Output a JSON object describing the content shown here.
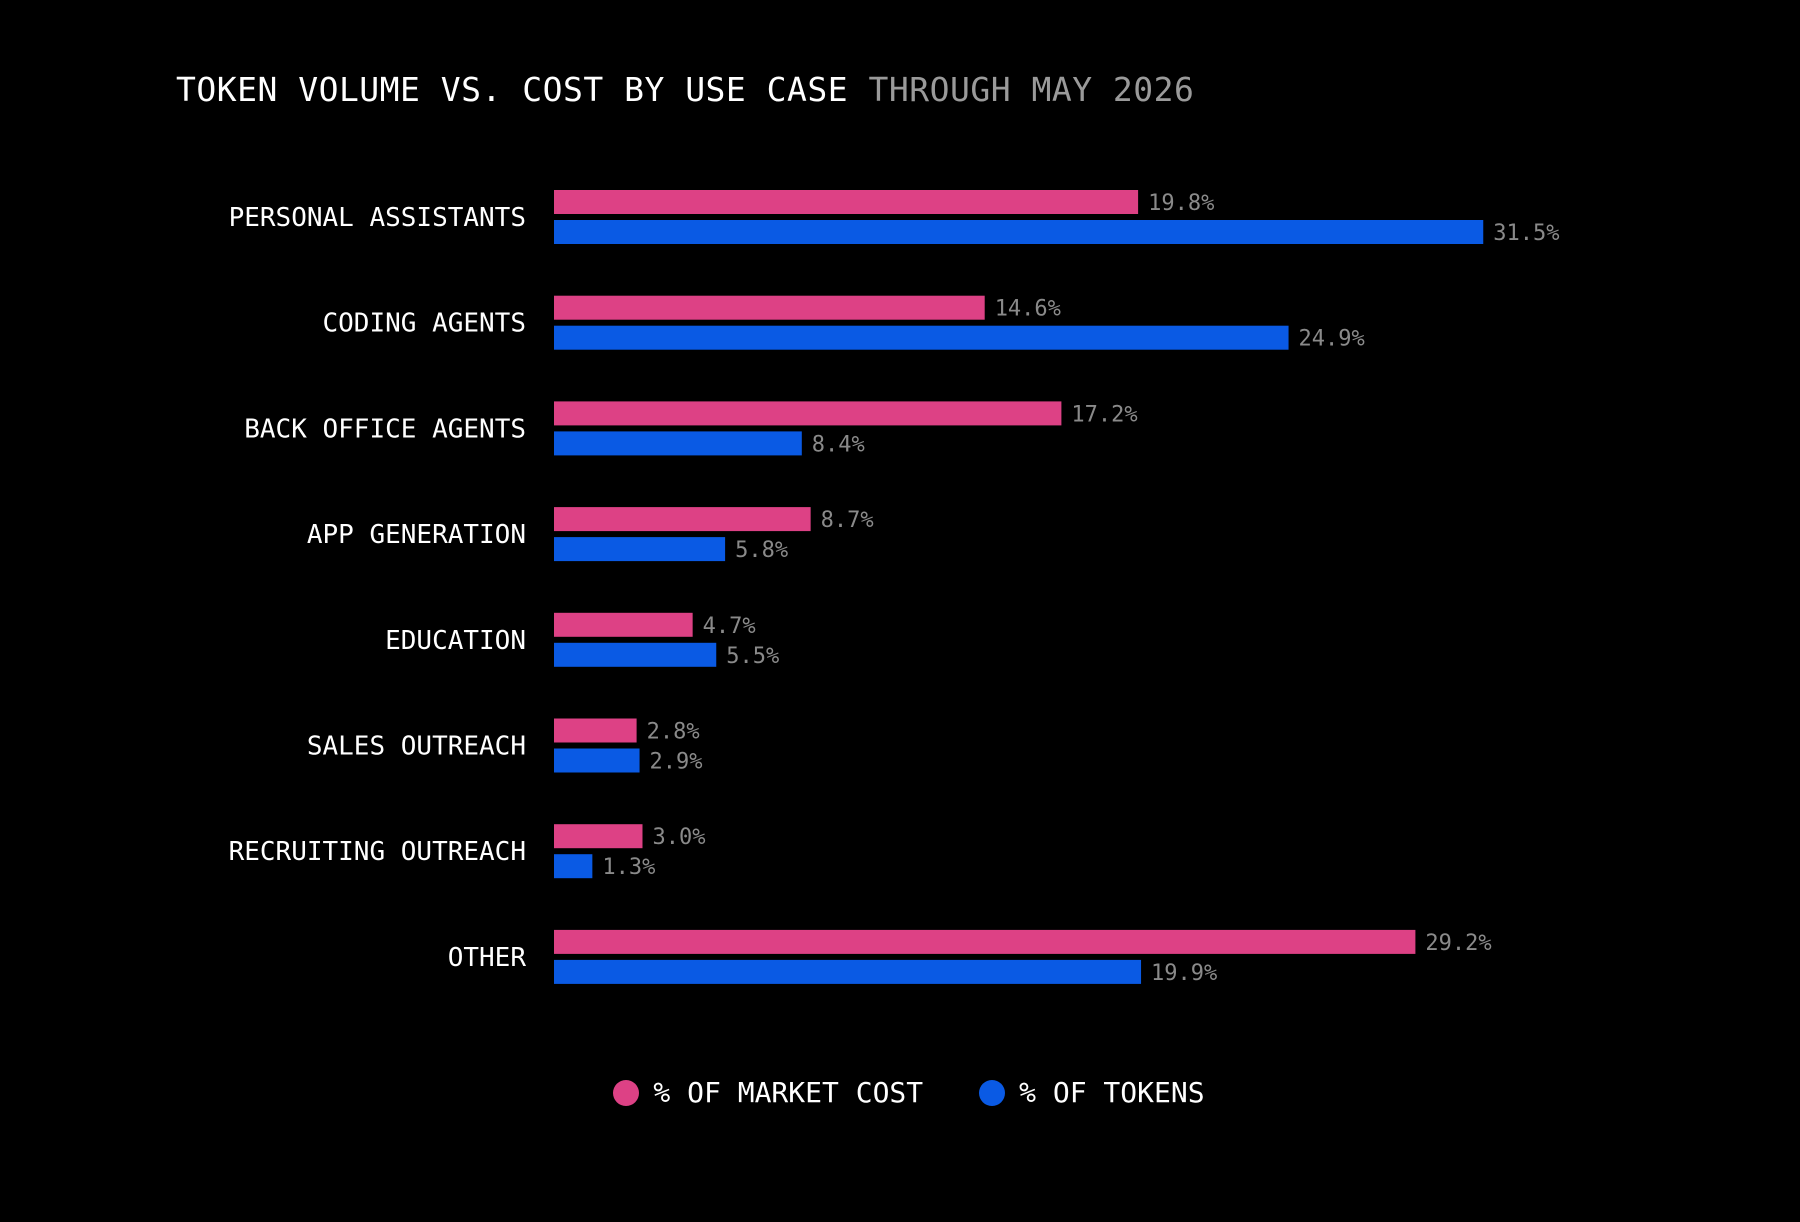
{
  "chart_data": {
    "type": "bar",
    "orientation": "horizontal",
    "title": "TOKEN VOLUME VS. COST BY USE CASE",
    "subtitle": "THROUGH MAY 2026",
    "categories": [
      "PERSONAL ASSISTANTS",
      "CODING AGENTS",
      "BACK OFFICE AGENTS",
      "APP GENERATION",
      "EDUCATION",
      "SALES OUTREACH",
      "RECRUITING OUTREACH",
      "OTHER"
    ],
    "series": [
      {
        "name": "% OF MARKET COST",
        "color": "#dd4185",
        "values": [
          19.8,
          14.6,
          17.2,
          8.7,
          4.7,
          2.8,
          3.0,
          29.2
        ],
        "labels": [
          "19.8%",
          "14.6%",
          "17.2%",
          "8.7%",
          "4.7%",
          "2.8%",
          "3.0%",
          "29.2%"
        ]
      },
      {
        "name": "% OF TOKENS",
        "color": "#0a5ae4",
        "values": [
          31.5,
          24.9,
          8.4,
          5.8,
          5.5,
          2.9,
          1.3,
          19.9
        ],
        "labels": [
          "31.5%",
          "24.9%",
          "8.4%",
          "5.8%",
          "5.5%",
          "2.9%",
          "1.3%",
          "19.9%"
        ]
      }
    ],
    "legend_position": "bottom-center",
    "grid": false
  },
  "colors": {
    "background": "#000000",
    "title": "#ffffff",
    "subtitle": "#9a9a9a",
    "category_label": "#ffffff",
    "value_label": "#8a8a8a"
  }
}
